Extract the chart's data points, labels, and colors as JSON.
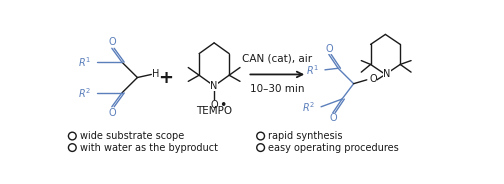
{
  "fig_width": 5.04,
  "fig_height": 1.84,
  "dpi": 100,
  "bg_color": "#ffffff",
  "blue_color": "#5b7fbb",
  "black_color": "#1a1a1a",
  "reaction_condition_line1": "CAN (cat), air",
  "reaction_condition_line2": "10–30 min",
  "tempo_label": "TEMPO",
  "bullet_items_left": [
    "wide substrate scope",
    "with water as the byproduct"
  ],
  "bullet_items_right": [
    "rapid synthesis",
    "easy operating procedures"
  ],
  "font_size_conditions": 7.5,
  "font_size_labels": 7.0,
  "font_size_bullet": 7.0,
  "font_size_tempo": 7.5,
  "font_size_atom": 7.0
}
